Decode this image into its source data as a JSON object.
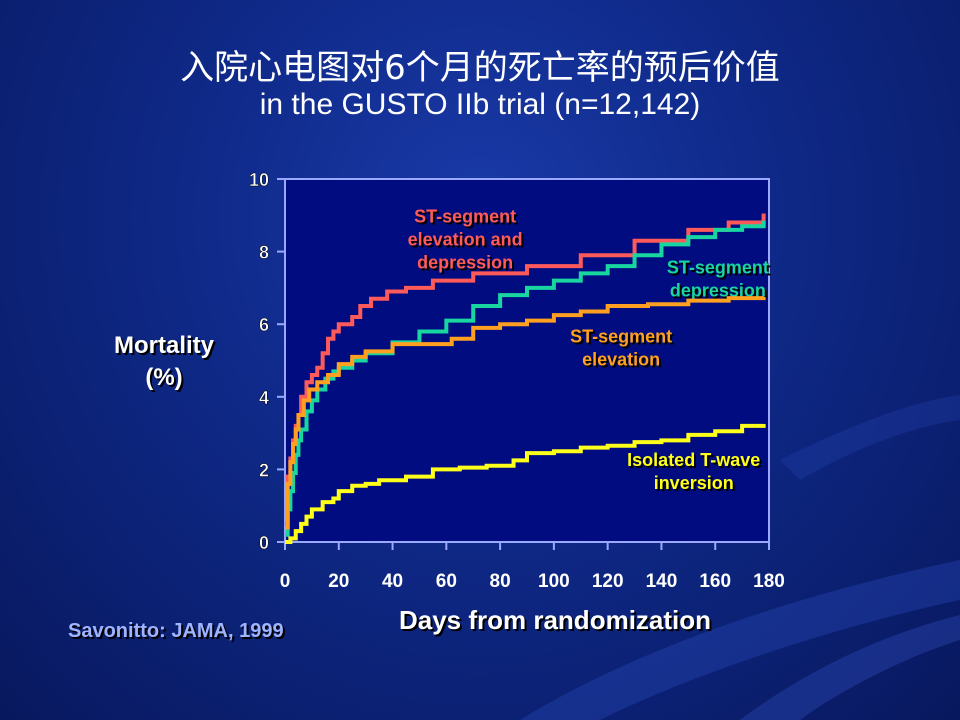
{
  "slide": {
    "title_line1": "入院心电图对6个月的死亡率的预后价值",
    "title_line2": "in the GUSTO IIb trial (n=12,142)",
    "citation": "Savonitto:  JAMA, 1999"
  },
  "chart_data": {
    "type": "line",
    "xlabel": "Days from randomization",
    "ylabel_lines": [
      "Mortality",
      "(%)"
    ],
    "xlim": [
      0,
      180
    ],
    "ylim": [
      0,
      10
    ],
    "x_ticks": [
      0,
      20,
      40,
      60,
      80,
      100,
      120,
      140,
      160,
      180
    ],
    "y_ticks": [
      0,
      2,
      4,
      6,
      8,
      10
    ],
    "grid": false,
    "series": [
      {
        "name": "ST-segment elevation and depression",
        "label_lines": [
          "ST-segment",
          "elevation and",
          "depression"
        ],
        "label_pos": [
          67,
          8.8
        ],
        "color": "#ff5a5a",
        "points": [
          [
            0,
            0.5
          ],
          [
            1,
            1.8
          ],
          [
            2,
            2.3
          ],
          [
            3,
            2.8
          ],
          [
            4,
            3.2
          ],
          [
            5,
            3.5
          ],
          [
            6,
            4.0
          ],
          [
            8,
            4.4
          ],
          [
            10,
            4.6
          ],
          [
            12,
            4.8
          ],
          [
            14,
            5.2
          ],
          [
            16,
            5.6
          ],
          [
            18,
            5.8
          ],
          [
            20,
            6.0
          ],
          [
            25,
            6.2
          ],
          [
            28,
            6.5
          ],
          [
            32,
            6.7
          ],
          [
            38,
            6.9
          ],
          [
            45,
            7.0
          ],
          [
            55,
            7.2
          ],
          [
            70,
            7.4
          ],
          [
            90,
            7.6
          ],
          [
            110,
            7.9
          ],
          [
            130,
            8.3
          ],
          [
            150,
            8.6
          ],
          [
            165,
            8.8
          ],
          [
            178,
            9.05
          ]
        ]
      },
      {
        "name": "ST-segment depression",
        "label_lines": [
          "ST-segment",
          "depression"
        ],
        "label_pos": [
          161,
          7.4
        ],
        "color": "#19d6a0",
        "points": [
          [
            0,
            0.2
          ],
          [
            1,
            0.9
          ],
          [
            2,
            1.4
          ],
          [
            3,
            1.9
          ],
          [
            4,
            2.4
          ],
          [
            5,
            2.8
          ],
          [
            6,
            3.1
          ],
          [
            8,
            3.6
          ],
          [
            10,
            3.9
          ],
          [
            12,
            4.2
          ],
          [
            15,
            4.5
          ],
          [
            18,
            4.7
          ],
          [
            20,
            4.8
          ],
          [
            25,
            5.0
          ],
          [
            30,
            5.2
          ],
          [
            40,
            5.5
          ],
          [
            50,
            5.8
          ],
          [
            60,
            6.1
          ],
          [
            70,
            6.5
          ],
          [
            80,
            6.8
          ],
          [
            90,
            7.0
          ],
          [
            100,
            7.2
          ],
          [
            110,
            7.4
          ],
          [
            120,
            7.6
          ],
          [
            130,
            7.9
          ],
          [
            140,
            8.2
          ],
          [
            150,
            8.4
          ],
          [
            160,
            8.6
          ],
          [
            170,
            8.7
          ],
          [
            178,
            8.85
          ]
        ]
      },
      {
        "name": "ST-segment elevation",
        "label_lines": [
          "ST-segment",
          "elevation"
        ],
        "label_pos": [
          125,
          5.5
        ],
        "color": "#ffa020",
        "points": [
          [
            0,
            0.4
          ],
          [
            1,
            1.6
          ],
          [
            2,
            2.2
          ],
          [
            3,
            2.7
          ],
          [
            4,
            3.1
          ],
          [
            5,
            3.5
          ],
          [
            7,
            3.9
          ],
          [
            9,
            4.2
          ],
          [
            12,
            4.4
          ],
          [
            16,
            4.6
          ],
          [
            20,
            4.9
          ],
          [
            25,
            5.1
          ],
          [
            30,
            5.25
          ],
          [
            40,
            5.45
          ],
          [
            55,
            5.45
          ],
          [
            62,
            5.6
          ],
          [
            70,
            5.9
          ],
          [
            80,
            6.0
          ],
          [
            90,
            6.1
          ],
          [
            100,
            6.25
          ],
          [
            110,
            6.35
          ],
          [
            120,
            6.5
          ],
          [
            135,
            6.55
          ],
          [
            150,
            6.65
          ],
          [
            165,
            6.72
          ],
          [
            178,
            6.75
          ]
        ]
      },
      {
        "name": "Isolated T-wave inversion",
        "label_lines": [
          "Isolated T-wave",
          "inversion"
        ],
        "label_pos": [
          152,
          2.1
        ],
        "color": "#ffff1a",
        "points": [
          [
            0,
            0.0
          ],
          [
            2,
            0.1
          ],
          [
            4,
            0.3
          ],
          [
            6,
            0.5
          ],
          [
            8,
            0.7
          ],
          [
            10,
            0.9
          ],
          [
            14,
            1.1
          ],
          [
            18,
            1.2
          ],
          [
            20,
            1.4
          ],
          [
            25,
            1.55
          ],
          [
            30,
            1.6
          ],
          [
            35,
            1.7
          ],
          [
            45,
            1.8
          ],
          [
            55,
            2.0
          ],
          [
            65,
            2.05
          ],
          [
            75,
            2.1
          ],
          [
            85,
            2.25
          ],
          [
            90,
            2.45
          ],
          [
            100,
            2.5
          ],
          [
            110,
            2.6
          ],
          [
            120,
            2.65
          ],
          [
            130,
            2.75
          ],
          [
            140,
            2.8
          ],
          [
            150,
            2.95
          ],
          [
            160,
            3.05
          ],
          [
            170,
            3.2
          ],
          [
            178,
            3.25
          ]
        ]
      }
    ]
  }
}
